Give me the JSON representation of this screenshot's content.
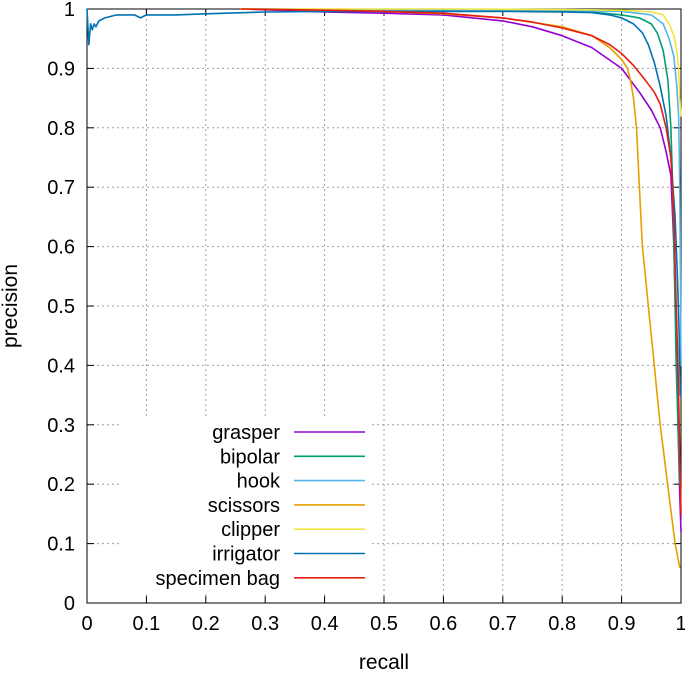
{
  "chart_data": {
    "type": "line",
    "title": "",
    "xlabel": "recall",
    "ylabel": "precision",
    "xlim": [
      0,
      1
    ],
    "ylim": [
      0,
      1
    ],
    "xticks": [
      "0",
      "0.1",
      "0.2",
      "0.3",
      "0.4",
      "0.5",
      "0.6",
      "0.7",
      "0.8",
      "0.9",
      "1"
    ],
    "yticks": [
      "0",
      "0.1",
      "0.2",
      "0.3",
      "0.4",
      "0.5",
      "0.6",
      "0.7",
      "0.8",
      "0.9",
      "1"
    ],
    "grid": true,
    "legend_position": "bottom-left",
    "series": [
      {
        "name": "grasper",
        "color": "#9400d3",
        "points": [
          [
            0.26,
            1.0
          ],
          [
            0.4,
            0.995
          ],
          [
            0.5,
            0.993
          ],
          [
            0.6,
            0.99
          ],
          [
            0.7,
            0.98
          ],
          [
            0.75,
            0.97
          ],
          [
            0.8,
            0.955
          ],
          [
            0.85,
            0.935
          ],
          [
            0.9,
            0.9
          ],
          [
            0.93,
            0.86
          ],
          [
            0.95,
            0.83
          ],
          [
            0.965,
            0.8
          ],
          [
            0.975,
            0.76
          ],
          [
            0.983,
            0.72
          ],
          [
            0.988,
            0.6
          ],
          [
            0.992,
            0.45
          ],
          [
            0.995,
            0.3
          ],
          [
            0.998,
            0.18
          ],
          [
            1.0,
            0.12
          ]
        ]
      },
      {
        "name": "bipolar",
        "color": "#009e73",
        "points": [
          [
            0.26,
            1.0
          ],
          [
            0.5,
            0.999
          ],
          [
            0.7,
            0.998
          ],
          [
            0.8,
            0.997
          ],
          [
            0.85,
            0.995
          ],
          [
            0.9,
            0.99
          ],
          [
            0.93,
            0.985
          ],
          [
            0.95,
            0.975
          ],
          [
            0.96,
            0.96
          ],
          [
            0.97,
            0.93
          ],
          [
            0.978,
            0.88
          ],
          [
            0.983,
            0.8
          ],
          [
            0.986,
            0.7
          ],
          [
            0.988,
            0.6
          ],
          [
            0.99,
            0.5
          ],
          [
            0.992,
            0.4
          ],
          [
            0.995,
            0.3
          ],
          [
            0.998,
            0.2
          ]
        ]
      },
      {
        "name": "hook",
        "color": "#56b4e9",
        "points": [
          [
            0.26,
            1.0
          ],
          [
            0.6,
            0.999
          ],
          [
            0.8,
            0.998
          ],
          [
            0.9,
            0.996
          ],
          [
            0.95,
            0.99
          ],
          [
            0.97,
            0.975
          ],
          [
            0.98,
            0.95
          ],
          [
            0.988,
            0.92
          ],
          [
            0.993,
            0.87
          ],
          [
            0.996,
            0.82
          ],
          [
            0.998,
            0.7
          ],
          [
            0.999,
            0.55
          ],
          [
            1.0,
            0.4
          ]
        ]
      },
      {
        "name": "scissors",
        "color": "#e69f00",
        "points": [
          [
            0.26,
            1.0
          ],
          [
            0.4,
            0.998
          ],
          [
            0.5,
            0.996
          ],
          [
            0.6,
            0.992
          ],
          [
            0.7,
            0.985
          ],
          [
            0.8,
            0.97
          ],
          [
            0.85,
            0.955
          ],
          [
            0.88,
            0.935
          ],
          [
            0.9,
            0.915
          ],
          [
            0.91,
            0.9
          ],
          [
            0.915,
            0.88
          ],
          [
            0.92,
            0.85
          ],
          [
            0.925,
            0.8
          ],
          [
            0.93,
            0.7
          ],
          [
            0.935,
            0.6
          ],
          [
            0.94,
            0.55
          ],
          [
            0.945,
            0.5
          ],
          [
            0.95,
            0.45
          ],
          [
            0.955,
            0.4
          ],
          [
            0.96,
            0.35
          ],
          [
            0.965,
            0.3
          ],
          [
            0.97,
            0.26
          ],
          [
            0.975,
            0.22
          ],
          [
            0.98,
            0.18
          ],
          [
            0.985,
            0.14
          ],
          [
            0.99,
            0.1
          ],
          [
            0.995,
            0.075
          ],
          [
            0.998,
            0.06
          ]
        ]
      },
      {
        "name": "clipper",
        "color": "#f0e442",
        "points": [
          [
            0.26,
            1.0
          ],
          [
            0.6,
            1.0
          ],
          [
            0.8,
            0.999
          ],
          [
            0.9,
            0.998
          ],
          [
            0.95,
            0.995
          ],
          [
            0.97,
            0.99
          ],
          [
            0.98,
            0.975
          ],
          [
            0.988,
            0.955
          ],
          [
            0.993,
            0.93
          ],
          [
            0.996,
            0.9
          ],
          [
            0.998,
            0.85
          ],
          [
            1.0,
            0.82
          ]
        ]
      },
      {
        "name": "irrigator",
        "color": "#0072b2",
        "points": [
          [
            0.0,
            1.0
          ],
          [
            0.003,
            0.94
          ],
          [
            0.006,
            0.975
          ],
          [
            0.009,
            0.965
          ],
          [
            0.012,
            0.975
          ],
          [
            0.015,
            0.97
          ],
          [
            0.02,
            0.98
          ],
          [
            0.03,
            0.985
          ],
          [
            0.05,
            0.99
          ],
          [
            0.08,
            0.99
          ],
          [
            0.09,
            0.985
          ],
          [
            0.1,
            0.99
          ],
          [
            0.15,
            0.99
          ],
          [
            0.2,
            0.992
          ],
          [
            0.3,
            0.995
          ],
          [
            0.4,
            0.996
          ],
          [
            0.5,
            0.996
          ],
          [
            0.6,
            0.996
          ],
          [
            0.7,
            0.996
          ],
          [
            0.8,
            0.995
          ],
          [
            0.85,
            0.994
          ],
          [
            0.88,
            0.99
          ],
          [
            0.9,
            0.985
          ],
          [
            0.92,
            0.975
          ],
          [
            0.935,
            0.96
          ],
          [
            0.945,
            0.94
          ],
          [
            0.955,
            0.91
          ],
          [
            0.965,
            0.87
          ],
          [
            0.975,
            0.82
          ],
          [
            0.983,
            0.75
          ],
          [
            0.99,
            0.65
          ],
          [
            0.994,
            0.55
          ],
          [
            0.997,
            0.45
          ],
          [
            0.999,
            0.35
          ]
        ]
      },
      {
        "name": "specimen bag",
        "color": "#e51e10",
        "points": [
          [
            0.26,
            1.0
          ],
          [
            0.4,
            0.998
          ],
          [
            0.5,
            0.996
          ],
          [
            0.6,
            0.993
          ],
          [
            0.7,
            0.985
          ],
          [
            0.75,
            0.978
          ],
          [
            0.8,
            0.968
          ],
          [
            0.85,
            0.955
          ],
          [
            0.88,
            0.94
          ],
          [
            0.9,
            0.925
          ],
          [
            0.92,
            0.905
          ],
          [
            0.94,
            0.88
          ],
          [
            0.955,
            0.86
          ],
          [
            0.965,
            0.84
          ],
          [
            0.975,
            0.8
          ],
          [
            0.983,
            0.75
          ],
          [
            0.988,
            0.65
          ],
          [
            0.992,
            0.5
          ],
          [
            0.995,
            0.4
          ],
          [
            0.997,
            0.3
          ],
          [
            0.999,
            0.2
          ],
          [
            1.0,
            0.15
          ]
        ]
      }
    ]
  }
}
